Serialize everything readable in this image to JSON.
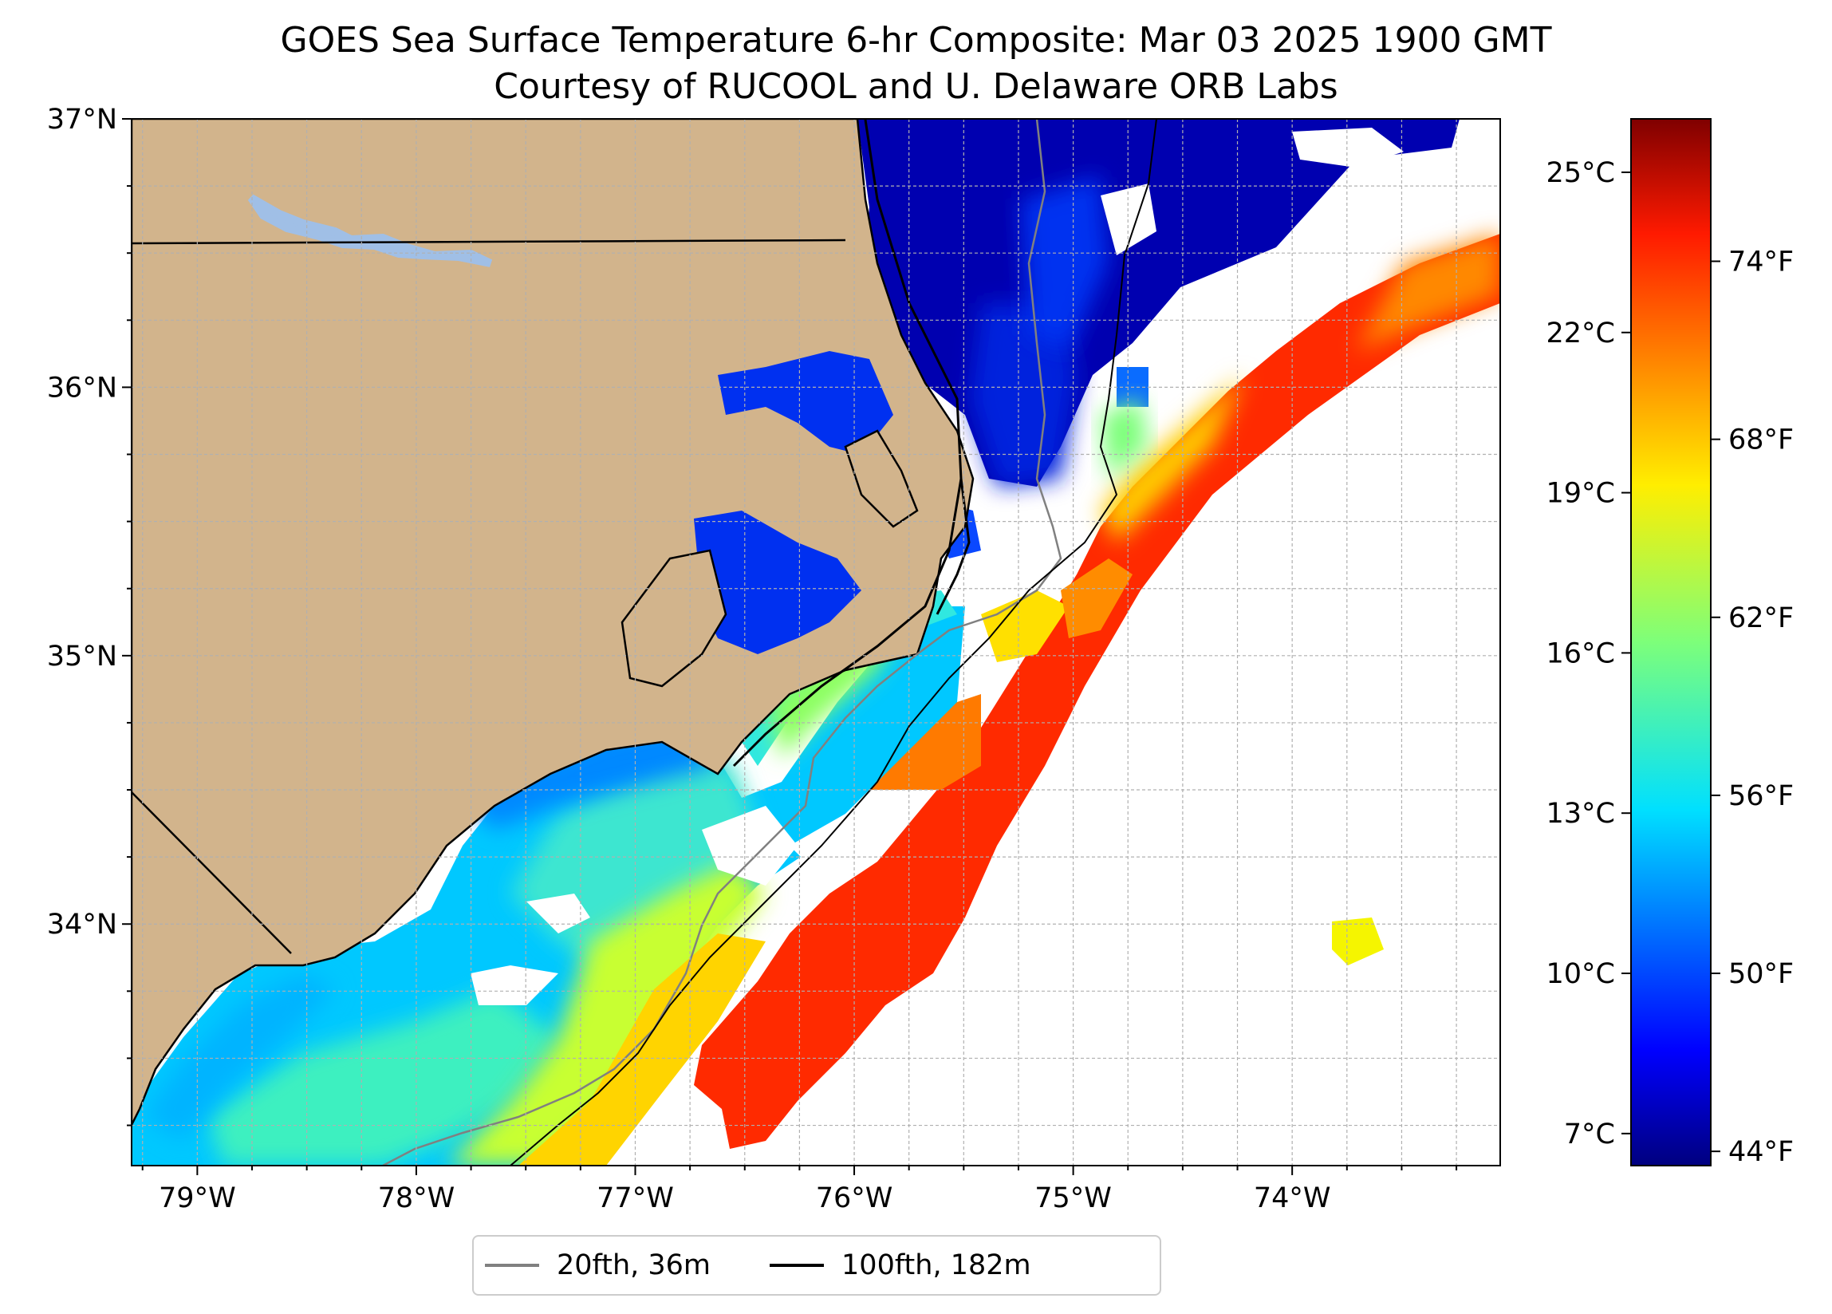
{
  "title": {
    "line1": "GOES Sea Surface Temperature 6-hr Composite: Mar 03 2025 1900 GMT",
    "line2": "Courtesy of RUCOOL and U. Delaware ORB Labs"
  },
  "map": {
    "lon_range": [
      -79.3,
      -73.05
    ],
    "lat_range": [
      33.1,
      37.0
    ],
    "lon_ticks": [
      {
        "value": -79,
        "label": "79°W"
      },
      {
        "value": -78,
        "label": "78°W"
      },
      {
        "value": -77,
        "label": "77°W"
      },
      {
        "value": -76,
        "label": "76°W"
      },
      {
        "value": -75,
        "label": "75°W"
      },
      {
        "value": -74,
        "label": "74°W"
      }
    ],
    "lat_ticks": [
      {
        "value": 37,
        "label": "37°N"
      },
      {
        "value": 36,
        "label": "36°N"
      },
      {
        "value": 35,
        "label": "35°N"
      },
      {
        "value": 34,
        "label": "34°N"
      }
    ],
    "gridlines": true,
    "colors": {
      "land": "#d2b48c",
      "lake": "#a0bfe6",
      "ocean_nodata": "#ffffff",
      "grid": "#b0b0b0",
      "isobath_20": "#808080",
      "isobath_100": "#000000"
    }
  },
  "colorbar": {
    "colormap": "jet",
    "celsius_range": [
      6.4,
      26.0
    ],
    "celsius_ticks": [
      {
        "value": 7,
        "label": "7°C"
      },
      {
        "value": 10,
        "label": "10°C"
      },
      {
        "value": 13,
        "label": "13°C"
      },
      {
        "value": 16,
        "label": "16°C"
      },
      {
        "value": 19,
        "label": "19°C"
      },
      {
        "value": 22,
        "label": "22°C"
      },
      {
        "value": 25,
        "label": "25°C"
      }
    ],
    "fahrenheit_ticks": [
      {
        "value": 44,
        "label": "44°F"
      },
      {
        "value": 50,
        "label": "50°F"
      },
      {
        "value": 56,
        "label": "56°F"
      },
      {
        "value": 62,
        "label": "62°F"
      },
      {
        "value": 68,
        "label": "68°F"
      },
      {
        "value": 74,
        "label": "74°F"
      }
    ]
  },
  "legend": {
    "placement": "bottom-center",
    "items": [
      {
        "label": "20fth, 36m",
        "color": "#808080"
      },
      {
        "label": "100fth, 182m",
        "color": "#000000"
      }
    ]
  }
}
